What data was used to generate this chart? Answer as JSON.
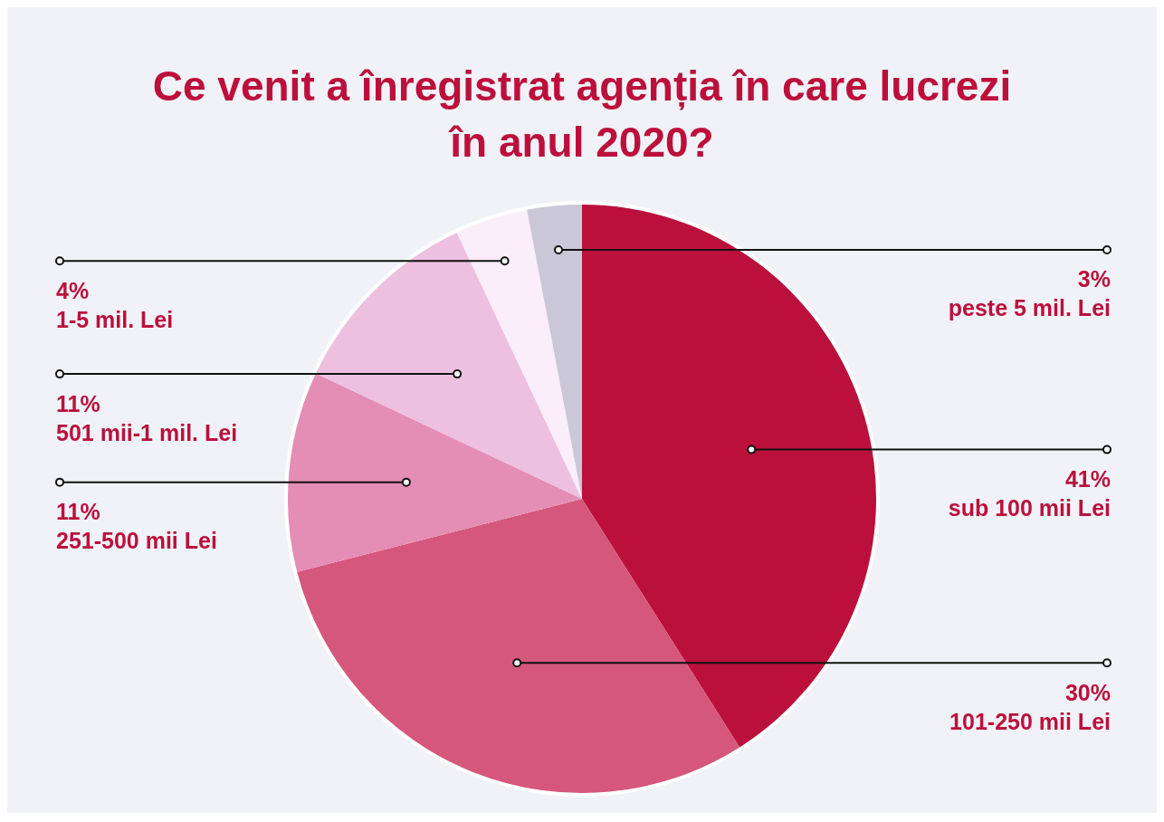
{
  "chart_data": {
    "type": "pie",
    "title": "Ce venit a înregistrat agenția în care lucrezi în anul 2020?",
    "categories": [
      "sub 100 mii Lei",
      "101-250 mii Lei",
      "251-500 mii Lei",
      "501 mii-1 mil. Lei",
      "1-5 mil. Lei",
      "peste 5 mil. Lei"
    ],
    "values": [
      41,
      30,
      11,
      11,
      4,
      3
    ],
    "value_labels": [
      "41%",
      "30%",
      "11%",
      "11%",
      "4%",
      "3%"
    ],
    "colors": [
      "#bc103c",
      "#d5577c",
      "#e48db5",
      "#edc0e0",
      "#fbeefa",
      "#cac8d7"
    ],
    "legend": false
  }
}
